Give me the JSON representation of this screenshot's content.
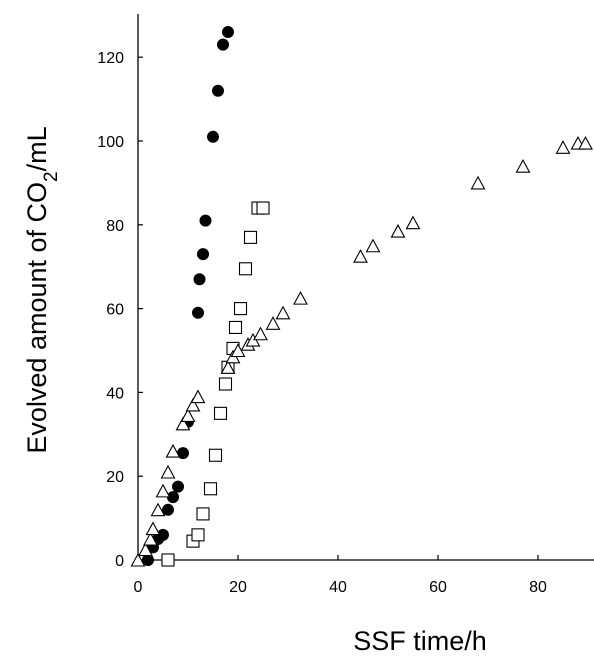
{
  "chart_data": {
    "type": "scatter",
    "title": "",
    "xlabel": "SSF time/h",
    "ylabel": {
      "prefix": "Evolved amount of CO",
      "subscript": "2",
      "suffix": "/mL"
    },
    "xlim": [
      0,
      90
    ],
    "ylim": [
      0,
      130
    ],
    "x_ticks": [
      0,
      20,
      40,
      60,
      80
    ],
    "y_ticks": [
      0,
      20,
      40,
      60,
      80,
      100,
      120
    ],
    "grid": false,
    "legend": "none",
    "series": [
      {
        "marker": "filled-circle",
        "color": "#000000",
        "points": [
          [
            2,
            0
          ],
          [
            3,
            3
          ],
          [
            4,
            5
          ],
          [
            5,
            6
          ],
          [
            6,
            12
          ],
          [
            7,
            15
          ],
          [
            8,
            17.5
          ],
          [
            9,
            25.5
          ],
          [
            10,
            33
          ],
          [
            12,
            59
          ],
          [
            12.3,
            67
          ],
          [
            13,
            73
          ],
          [
            13.5,
            81
          ],
          [
            15,
            101
          ],
          [
            16,
            112
          ],
          [
            17,
            123
          ],
          [
            18,
            126
          ]
        ]
      },
      {
        "marker": "open-square",
        "color": "#000000",
        "points": [
          [
            6,
            0
          ],
          [
            11,
            4.5
          ],
          [
            12,
            6
          ],
          [
            13,
            11
          ],
          [
            14.5,
            17
          ],
          [
            15.5,
            25
          ],
          [
            16.5,
            35
          ],
          [
            17.5,
            42
          ],
          [
            18,
            46
          ],
          [
            19,
            50.5
          ],
          [
            19.5,
            55.5
          ],
          [
            20.5,
            60
          ],
          [
            21.5,
            69.5
          ],
          [
            22.5,
            77
          ],
          [
            24,
            84
          ],
          [
            25,
            84
          ]
        ]
      },
      {
        "marker": "open-triangle",
        "color": "#000000",
        "points": [
          [
            0,
            0
          ],
          [
            1.5,
            2.5
          ],
          [
            2.5,
            5
          ],
          [
            3,
            7.5
          ],
          [
            4,
            12
          ],
          [
            5,
            16.5
          ],
          [
            6,
            21
          ],
          [
            7,
            26
          ],
          [
            9,
            32.5
          ],
          [
            10,
            34.5
          ],
          [
            11,
            37
          ],
          [
            12,
            39
          ],
          [
            18,
            46
          ],
          [
            19,
            48.5
          ],
          [
            20,
            50
          ],
          [
            22,
            51.5
          ],
          [
            23,
            52.5
          ],
          [
            24.5,
            54
          ],
          [
            27,
            56.5
          ],
          [
            29,
            59
          ],
          [
            32.5,
            62.5
          ],
          [
            44.5,
            72.5
          ],
          [
            47,
            75
          ],
          [
            52,
            78.5
          ],
          [
            55,
            80.5
          ],
          [
            68,
            90
          ],
          [
            77,
            94
          ],
          [
            85,
            98.5
          ],
          [
            88,
            99.5
          ],
          [
            89.5,
            99.5
          ]
        ]
      }
    ]
  }
}
